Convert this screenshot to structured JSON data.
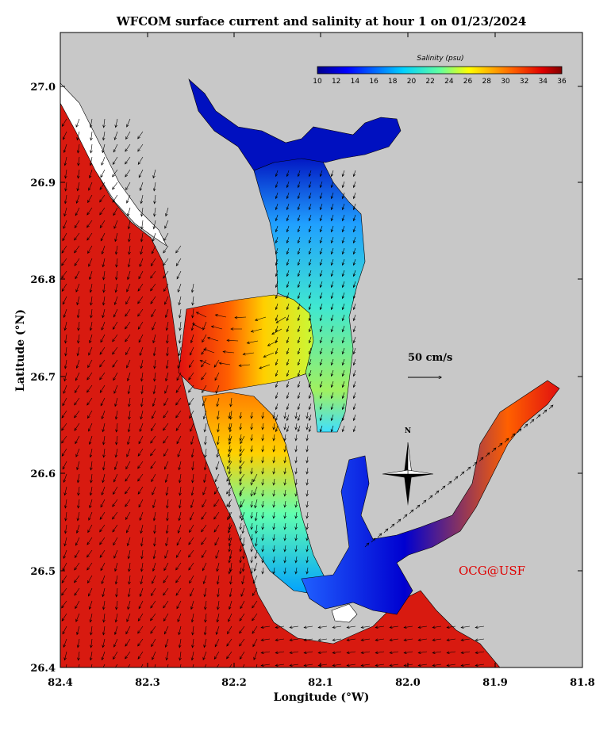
{
  "title": "WFCOM surface current and salinity at hour 1 on 01/23/2024",
  "xlabel": "Longitude (°W)",
  "ylabel": "Latitude (°N)",
  "x_ticks": [
    "82.4",
    "82.3",
    "82.2",
    "82.1",
    "82.0",
    "81.9",
    "81.8"
  ],
  "y_ticks": [
    "27.0",
    "26.9",
    "26.8",
    "26.7",
    "26.6",
    "26.5",
    "26.4"
  ],
  "colorbar": {
    "title": "Salinity (psu)",
    "ticks": [
      "10",
      "12",
      "14",
      "16",
      "18",
      "20",
      "22",
      "24",
      "26",
      "28",
      "30",
      "32",
      "34",
      "36"
    ],
    "range": [
      10,
      36
    ]
  },
  "scale_label": "50 cm/s",
  "north_label": "N",
  "credit": "OCG@USF",
  "colors": {
    "land": "#c8c8c8",
    "gulf": "#d81a10",
    "low_salinity": "#00008c",
    "credit": "#e00000"
  }
}
